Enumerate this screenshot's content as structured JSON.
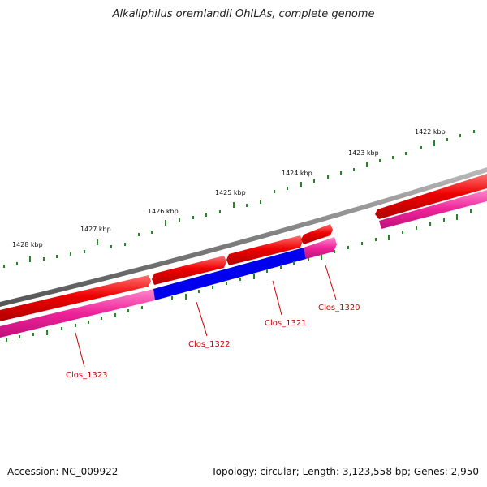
{
  "title": "Alkaliphilus oremlandii OhILAs, complete genome",
  "footer": {
    "accession": "Accession: NC_009922",
    "stats": "Topology: circular; Length: 3,123,558 bp; Genes: 2,950"
  },
  "scale_labels": [
    "1428 kbp",
    "1427 kbp",
    "1426 kbp",
    "1425 kbp",
    "1424 kbp",
    "1423 kbp",
    "1422 kbp"
  ],
  "gene_labels": [
    "Clos_1323",
    "Clos_1322",
    "Clos_1321",
    "Clos_1320"
  ],
  "colors": {
    "backbone": "#808080",
    "forward_gene": "#ee0000",
    "reverse_gene": "#ff44aa",
    "highlight_gene": "#0000ee",
    "tick": "#228822",
    "label": "#cc0000"
  }
}
